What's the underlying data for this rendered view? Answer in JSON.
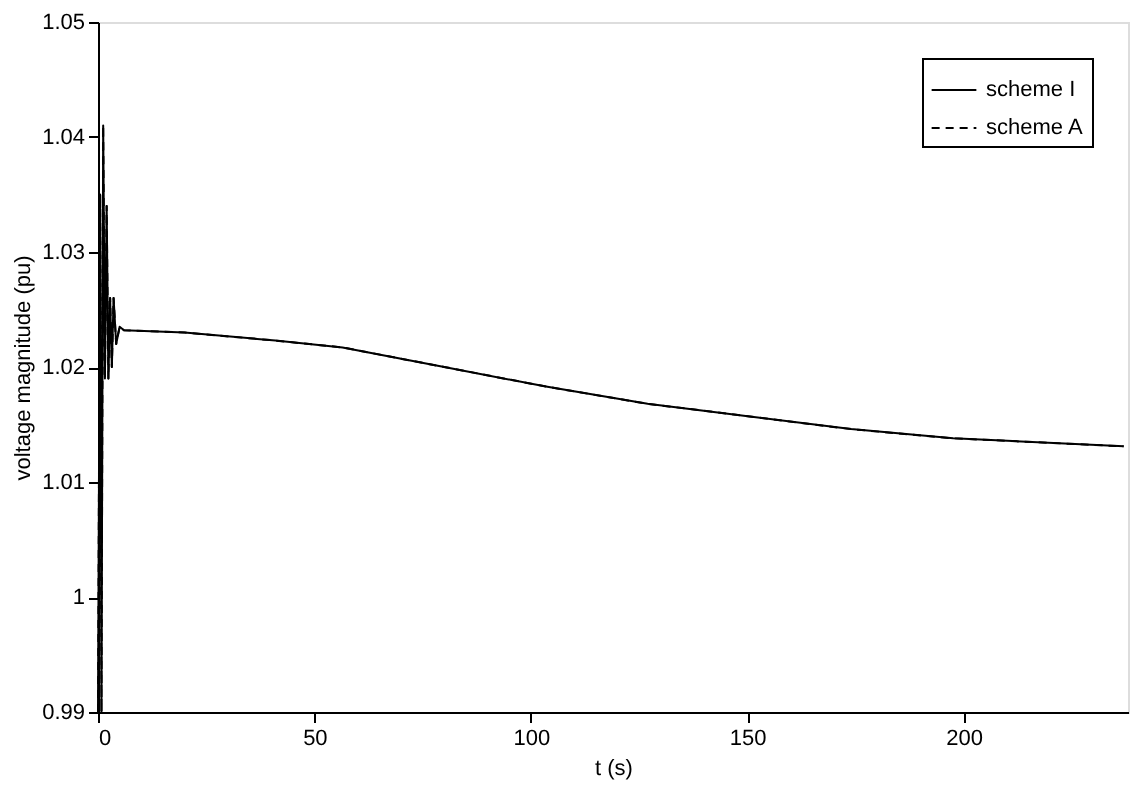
{
  "chart_data": {
    "type": "line",
    "xlabel": "t (s)",
    "ylabel": "voltage magnitude (pu)",
    "x": [
      0,
      0.5,
      0.8,
      1.2,
      1.6,
      2.0,
      2.4,
      2.8,
      3.2,
      3.6,
      4.2,
      5,
      6,
      20,
      41,
      56.5,
      80,
      103.5,
      127,
      150.6,
      174,
      197.6,
      237
    ],
    "series": [
      {
        "name": "scheme I",
        "color": "#000000",
        "line_style": "solid",
        "values": [
          0.99,
          1.035,
          0.99,
          1.041,
          1.019,
          1.034,
          1.019,
          1.026,
          1.02,
          1.026,
          1.022,
          1.0235,
          1.0232,
          1.023,
          1.0223,
          1.0217,
          1.02,
          1.0183,
          1.0168,
          1.0157,
          1.0146,
          1.0138,
          1.0131
        ]
      },
      {
        "name": "scheme A",
        "color": "#000000",
        "line_style": "dashed",
        "values": [
          0.99,
          1.035,
          0.99,
          1.041,
          1.019,
          1.034,
          1.019,
          1.026,
          1.02,
          1.026,
          1.022,
          1.0235,
          1.0232,
          1.023,
          1.0223,
          1.0217,
          1.02,
          1.0183,
          1.0168,
          1.0157,
          1.0146,
          1.0138,
          1.0131
        ]
      }
    ],
    "xlim": [
      0,
      238
    ],
    "xticks": [
      0,
      50,
      100,
      150,
      200
    ],
    "ylim": [
      0.99,
      1.05
    ],
    "yticks": [
      0.99,
      1,
      1.01,
      1.02,
      1.03,
      1.04,
      1.05
    ],
    "grid": false,
    "legend": "top right"
  }
}
